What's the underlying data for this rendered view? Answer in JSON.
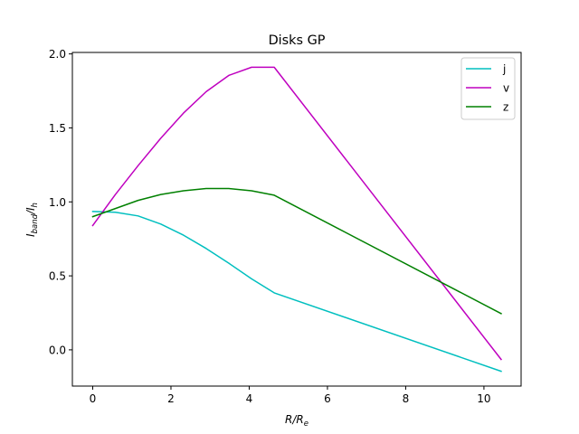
{
  "chart_data": {
    "type": "line",
    "title": "Disks GP",
    "xlabel": "R/R",
    "xlabel_sub": "e",
    "ylabel_parts": [
      "I",
      "band",
      "/I",
      "h"
    ],
    "xlim": [
      -0.52,
      10.95
    ],
    "ylim": [
      -0.245,
      2.01
    ],
    "xticks": [
      0,
      2,
      4,
      6,
      8,
      10
    ],
    "xtick_labels": [
      "0",
      "2",
      "4",
      "6",
      "8",
      "10"
    ],
    "yticks": [
      0.0,
      0.5,
      1.0,
      1.5,
      2.0
    ],
    "ytick_labels": [
      "0.0",
      "0.5",
      "1.0",
      "1.5",
      "2.0"
    ],
    "legend_position": "top-right",
    "series": [
      {
        "name": "j",
        "color": "#00bfbf",
        "x": [
          0,
          0.58,
          1.16,
          1.74,
          2.32,
          2.9,
          3.48,
          4.06,
          4.64,
          10.44
        ],
        "y": [
          0.935,
          0.93,
          0.905,
          0.85,
          0.775,
          0.685,
          0.585,
          0.48,
          0.385,
          -0.145
        ]
      },
      {
        "name": "v",
        "color": "#bf00bf",
        "x": [
          0,
          0.58,
          1.16,
          1.74,
          2.32,
          2.9,
          3.48,
          4.06,
          4.64,
          10.44
        ],
        "y": [
          0.84,
          1.05,
          1.245,
          1.43,
          1.6,
          1.745,
          1.855,
          1.91,
          1.91,
          -0.065
        ]
      },
      {
        "name": "z",
        "color": "#008000",
        "x": [
          0,
          0.58,
          1.16,
          1.74,
          2.32,
          2.9,
          3.48,
          4.06,
          4.64,
          10.44
        ],
        "y": [
          0.9,
          0.955,
          1.01,
          1.05,
          1.075,
          1.09,
          1.09,
          1.075,
          1.045,
          0.245
        ]
      }
    ]
  }
}
